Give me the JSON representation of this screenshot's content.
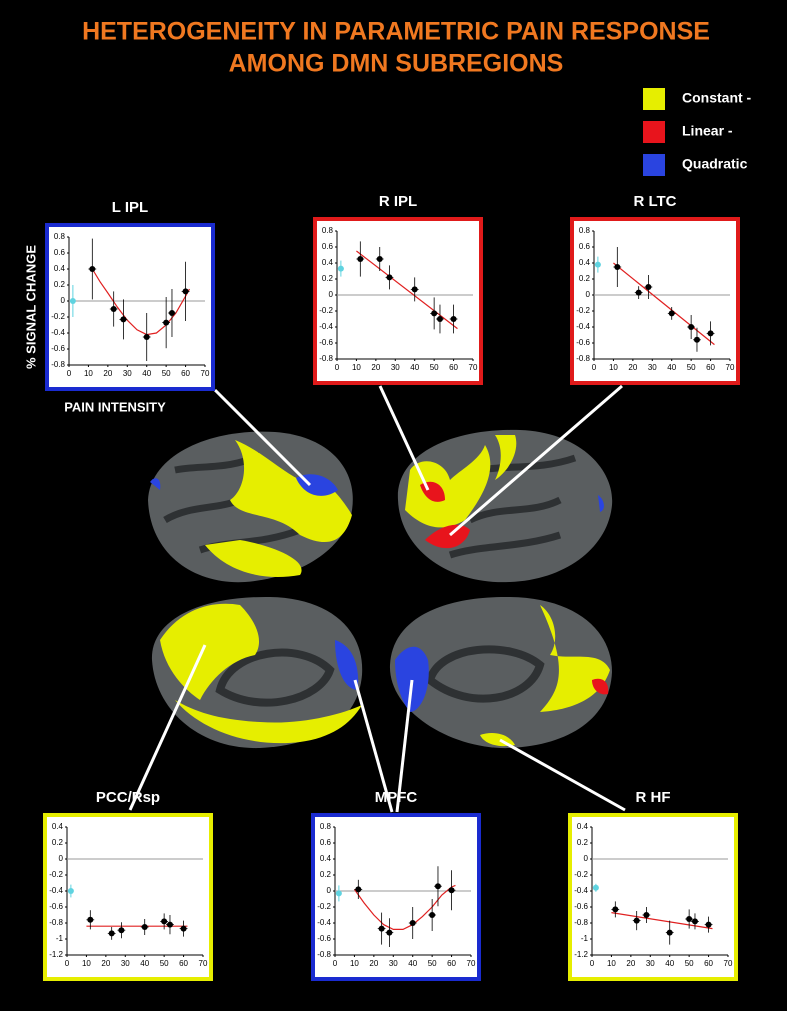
{
  "title_lines": [
    "HETEROGENEITY IN PARAMETRIC PAIN RESPONSE",
    "AMONG DMN SUBREGIONS"
  ],
  "legend": [
    {
      "label": "Constant -",
      "color": "#e6ee00"
    },
    {
      "label": "Linear -",
      "color": "#e8141c"
    },
    {
      "label": "Quadratic",
      "color": "#2a44e0"
    }
  ],
  "chart_data": [
    {
      "type": "errorbar",
      "title": "L IPL",
      "frame_color": "#1a2bd0",
      "ylabel": "% SIGNAL CHANGE",
      "xlabel": "PAIN INTENSITY",
      "x": [
        12,
        23,
        28,
        40,
        50,
        53,
        60
      ],
      "values": [
        0.4,
        -0.1,
        -0.23,
        -0.45,
        -0.27,
        -0.15,
        0.12
      ],
      "yerr": [
        0.38,
        0.22,
        0.25,
        0.3,
        0.32,
        0.3,
        0.37
      ],
      "xerr": [
        2,
        2,
        2,
        2,
        2,
        2,
        2
      ],
      "color": "#000000",
      "baseline": {
        "x": 2,
        "value": 0,
        "yerr": 0.2,
        "color": "#5fd3e0"
      },
      "fit": {
        "x": [
          12,
          16,
          20,
          25,
          30,
          35,
          40,
          45,
          50,
          55,
          60,
          62
        ],
        "values": [
          0.4,
          0.24,
          0.1,
          -0.08,
          -0.24,
          -0.36,
          -0.42,
          -0.4,
          -0.3,
          -0.15,
          0.06,
          0.15
        ],
        "color": "#e02020"
      },
      "xlim": [
        0,
        70
      ],
      "xticks": [
        0,
        10,
        20,
        30,
        40,
        50,
        60,
        70
      ],
      "ylim": [
        -0.8,
        0.8
      ],
      "yticks": [
        -0.8,
        -0.6,
        -0.4,
        -0.2,
        0,
        0.2,
        0.4,
        0.6,
        0.8
      ],
      "zero_line": true
    },
    {
      "type": "errorbar",
      "title": "R IPL",
      "frame_color": "#e01a1a",
      "x": [
        12,
        22,
        27,
        40,
        50,
        53,
        60
      ],
      "values": [
        0.45,
        0.45,
        0.22,
        0.07,
        -0.23,
        -0.3,
        -0.3
      ],
      "yerr": [
        0.22,
        0.15,
        0.15,
        0.15,
        0.2,
        0.18,
        0.18
      ],
      "xerr": [
        2,
        2,
        2,
        2,
        2,
        2,
        2
      ],
      "color": "#000000",
      "baseline": {
        "x": 2,
        "value": 0.33,
        "yerr": 0.1,
        "color": "#5fd3e0"
      },
      "fit": {
        "x": [
          10,
          62
        ],
        "values": [
          0.55,
          -0.42
        ],
        "color": "#e02020"
      },
      "xlim": [
        0,
        70
      ],
      "xticks": [
        0,
        10,
        20,
        30,
        40,
        50,
        60,
        70
      ],
      "ylim": [
        -0.8,
        0.8
      ],
      "yticks": [
        -0.8,
        -0.6,
        -0.4,
        -0.2,
        0,
        0.2,
        0.4,
        0.6,
        0.8
      ],
      "zero_line": true
    },
    {
      "type": "errorbar",
      "title": "R LTC",
      "frame_color": "#e01a1a",
      "x": [
        12,
        23,
        28,
        40,
        50,
        53,
        60
      ],
      "values": [
        0.35,
        0.03,
        0.1,
        -0.23,
        -0.4,
        -0.56,
        -0.48
      ],
      "yerr": [
        0.25,
        0.08,
        0.15,
        0.08,
        0.15,
        0.15,
        0.15
      ],
      "xerr": [
        2,
        2,
        2,
        2,
        2,
        2,
        2
      ],
      "color": "#000000",
      "baseline": {
        "x": 2,
        "value": 0.38,
        "yerr": 0.1,
        "color": "#5fd3e0"
      },
      "fit": {
        "x": [
          10,
          62
        ],
        "values": [
          0.4,
          -0.62
        ],
        "color": "#e02020"
      },
      "xlim": [
        0,
        70
      ],
      "xticks": [
        0,
        10,
        20,
        30,
        40,
        50,
        60,
        70
      ],
      "ylim": [
        -0.8,
        0.8
      ],
      "yticks": [
        -0.8,
        -0.6,
        -0.4,
        -0.2,
        0,
        0.2,
        0.4,
        0.6,
        0.8
      ],
      "zero_line": true
    },
    {
      "type": "errorbar",
      "title": "PCC/Rsp",
      "frame_color": "#e6ee00",
      "x": [
        12,
        23,
        28,
        40,
        50,
        53,
        60
      ],
      "values": [
        -0.76,
        -0.93,
        -0.89,
        -0.85,
        -0.78,
        -0.82,
        -0.87
      ],
      "yerr": [
        0.12,
        0.08,
        0.1,
        0.1,
        0.1,
        0.12,
        0.1
      ],
      "xerr": [
        2,
        2,
        2,
        2,
        2,
        2,
        2
      ],
      "color": "#000000",
      "baseline": {
        "x": 2,
        "value": -0.4,
        "yerr": 0.08,
        "color": "#5fd3e0"
      },
      "fit": {
        "x": [
          10,
          62
        ],
        "values": [
          -0.84,
          -0.84
        ],
        "color": "#e02020"
      },
      "xlim": [
        0,
        70
      ],
      "xticks": [
        0,
        10,
        20,
        30,
        40,
        50,
        60,
        70
      ],
      "ylim": [
        -1.2,
        0.4
      ],
      "yticks": [
        -1.2,
        -1,
        -0.8,
        -0.6,
        -0.4,
        -0.2,
        0,
        0.2,
        0.4
      ],
      "zero_line": true
    },
    {
      "type": "errorbar",
      "title": "MPFC",
      "frame_color": "#1a2bd0",
      "x": [
        12,
        24,
        28,
        40,
        50,
        53,
        60
      ],
      "values": [
        0.02,
        -0.47,
        -0.52,
        -0.4,
        -0.3,
        0.06,
        0.01
      ],
      "yerr": [
        0.12,
        0.2,
        0.18,
        0.2,
        0.2,
        0.25,
        0.25
      ],
      "xerr": [
        2,
        2,
        2,
        2,
        2,
        2,
        2
      ],
      "color": "#000000",
      "baseline": {
        "x": 2,
        "value": -0.03,
        "yerr": 0.1,
        "color": "#5fd3e0"
      },
      "fit": {
        "x": [
          10,
          15,
          20,
          25,
          30,
          35,
          40,
          45,
          50,
          55,
          60,
          62
        ],
        "values": [
          0.02,
          -0.15,
          -0.3,
          -0.42,
          -0.48,
          -0.48,
          -0.42,
          -0.32,
          -0.2,
          -0.05,
          0.05,
          0.07
        ],
        "color": "#e02020"
      },
      "xlim": [
        0,
        70
      ],
      "xticks": [
        0,
        10,
        20,
        30,
        40,
        50,
        60,
        70
      ],
      "ylim": [
        -0.8,
        0.8
      ],
      "yticks": [
        -0.8,
        -0.6,
        -0.4,
        -0.2,
        0,
        0.2,
        0.4,
        0.6,
        0.8
      ],
      "zero_line": true
    },
    {
      "type": "errorbar",
      "title": "R HF",
      "frame_color": "#e6ee00",
      "x": [
        12,
        23,
        28,
        40,
        50,
        53,
        60
      ],
      "values": [
        -0.63,
        -0.77,
        -0.7,
        -0.92,
        -0.75,
        -0.78,
        -0.82
      ],
      "yerr": [
        0.1,
        0.12,
        0.1,
        0.15,
        0.12,
        0.1,
        0.1
      ],
      "xerr": [
        2,
        2,
        2,
        2,
        2,
        2,
        2
      ],
      "color": "#000000",
      "baseline": {
        "x": 2,
        "value": -0.36,
        "yerr": 0.05,
        "color": "#5fd3e0"
      },
      "fit": {
        "x": [
          10,
          62
        ],
        "values": [
          -0.67,
          -0.87
        ],
        "color": "#e02020"
      },
      "xlim": [
        0,
        70
      ],
      "xticks": [
        0,
        10,
        20,
        30,
        40,
        50,
        60,
        70
      ],
      "ylim": [
        -1.2,
        0.4
      ],
      "yticks": [
        -1.2,
        -1,
        -0.8,
        -0.6,
        -0.4,
        -0.2,
        0,
        0.2,
        0.4
      ],
      "zero_line": true
    }
  ]
}
